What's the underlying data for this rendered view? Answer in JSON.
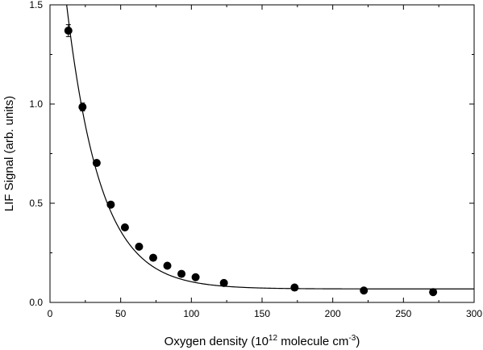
{
  "chart_data": {
    "type": "scatter",
    "title": "",
    "xlabel_parts": [
      "Oxygen density (10",
      "12",
      " molecule cm",
      "-3",
      ")"
    ],
    "ylabel": "LIF Signal  (arb. units)",
    "xlim": [
      0,
      300
    ],
    "ylim": [
      0,
      1.5
    ],
    "x_ticks": [
      0,
      50,
      100,
      150,
      200,
      250,
      300
    ],
    "y_ticks": [
      0.0,
      0.5,
      1.0,
      1.5
    ],
    "x_tick_labels": [
      "0",
      "50",
      "100",
      "150",
      "200",
      "250",
      "300"
    ],
    "y_tick_labels": [
      "0.0",
      "0.5",
      "1.0",
      "1.5"
    ],
    "grid": false,
    "legend": "none",
    "series": [
      {
        "kind": "points_with_error_bars",
        "x": [
          13,
          23,
          33,
          43,
          53,
          63,
          73,
          83,
          93,
          103,
          123,
          173,
          222,
          271
        ],
        "y": [
          1.37,
          0.985,
          0.703,
          0.493,
          0.378,
          0.281,
          0.225,
          0.185,
          0.144,
          0.127,
          0.098,
          0.075,
          0.06,
          0.052
        ],
        "y_err": [
          0.03,
          0.02,
          0.012,
          0.012,
          0.012,
          0.012,
          0.01,
          0.01,
          0.01,
          0.01,
          0.01,
          0.01,
          0.008,
          0.008
        ]
      },
      {
        "kind": "fit_curve",
        "model": "exponential_decay",
        "offset": 0.068,
        "amplitude": 2.34,
        "decay_constant": 24.0
      }
    ]
  }
}
